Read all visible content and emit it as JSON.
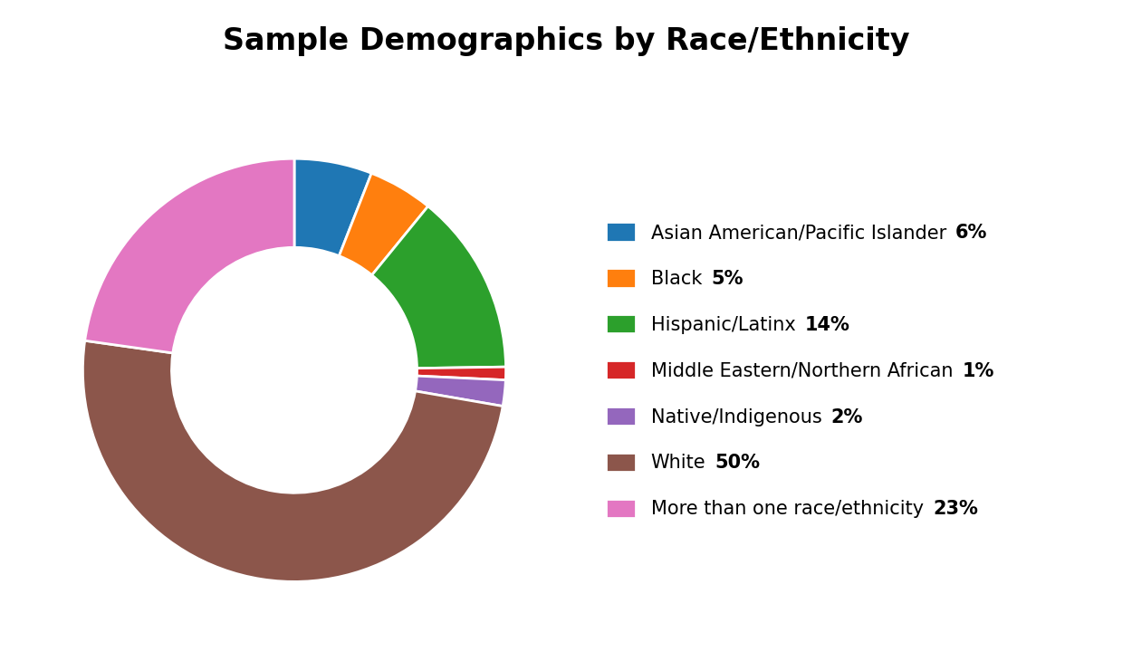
{
  "chart_data": {
    "type": "pie",
    "title": "Sample Demographics by Race/Ethnicity",
    "categories": [
      "Asian American/Pacific Islander",
      "Black",
      "Hispanic/Latinx",
      "Middle Eastern/Northern African",
      "Native/Indigenous",
      "White",
      "More than one race/ethnicity"
    ],
    "values": [
      6,
      5,
      14,
      1,
      2,
      50,
      23
    ],
    "value_labels": [
      "6%",
      "5%",
      "14%",
      "1%",
      "2%",
      "50%",
      "23%"
    ],
    "data_labels": true,
    "legend": "right"
  }
}
